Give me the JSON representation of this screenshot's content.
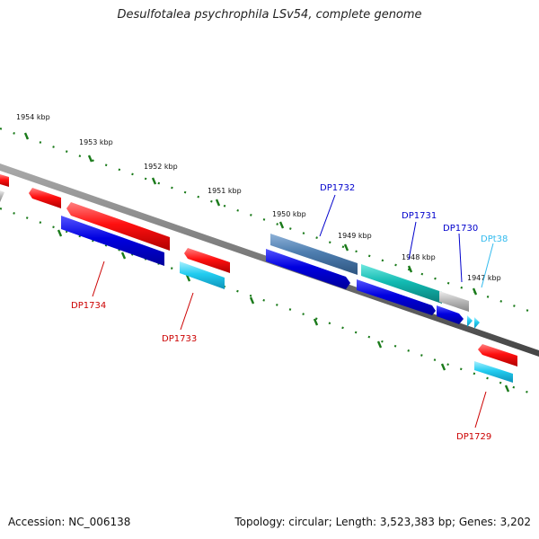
{
  "title": "Desulfotalea psychrophila LSv54, complete genome",
  "footer": {
    "accession": "Accession: NC_006138",
    "topology": "Topology: circular;",
    "length": "Length: 3,523,383 bp;",
    "genes": "Genes: 3,202"
  },
  "scale_ticks": [
    {
      "label": "1954 kbp"
    },
    {
      "label": "1953 kbp"
    },
    {
      "label": "1952 kbp"
    },
    {
      "label": "1951 kbp"
    },
    {
      "label": "1950 kbp"
    },
    {
      "label": "1949 kbp"
    },
    {
      "label": "1948 kbp"
    },
    {
      "label": "1947 kbp"
    }
  ],
  "gene_labels": [
    {
      "text": "DP1734",
      "color": "#cc0000"
    },
    {
      "text": "DP1733",
      "color": "#cc0000"
    },
    {
      "text": "DP1732",
      "color": "#0000cc"
    },
    {
      "text": "DP1731",
      "color": "#0000cc"
    },
    {
      "text": "DP1730",
      "color": "#0000cc"
    },
    {
      "text": "DPt38",
      "color": "#33bbee"
    },
    {
      "text": "DP1729",
      "color": "#cc0000"
    }
  ],
  "colors": {
    "red": "#ee1111",
    "blue": "#0000dd",
    "cyan": "#22ccee",
    "teal": "#11b8b0",
    "steel": "#4f7fb0",
    "grey": "#bbbbbb",
    "backbone": "#777777",
    "tick_green": "#1a7a1a"
  }
}
